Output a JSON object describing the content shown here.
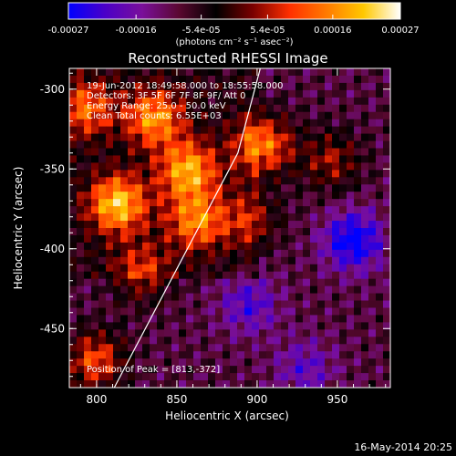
{
  "colorbar": {
    "tick_labels": [
      "-0.00027",
      "-0.00016",
      "-5.4e-05",
      "5.4e-05",
      "0.00016",
      "0.00027"
    ],
    "tick_values": [
      -0.00027,
      -0.00016,
      -5.4e-05,
      5.4e-05,
      0.00016,
      0.00027
    ],
    "range": [
      -0.00027,
      0.00027
    ],
    "units_label": "(photons cm⁻² s⁻¹ asec⁻²)",
    "colors": [
      "#0000ff",
      "#4b00c8",
      "#7a0f9a",
      "#5a0830",
      "#000000",
      "#7a0000",
      "#ff3000",
      "#ff7a00",
      "#ffc800",
      "#ffffff"
    ]
  },
  "chart_data": {
    "type": "heatmap",
    "title": "Reconstructed RHESSI Image",
    "xlabel": "Heliocentric X (arcsec)",
    "ylabel": "Heliocentric Y (arcsec)",
    "xlim": [
      783,
      983
    ],
    "ylim": [
      -487,
      -287
    ],
    "x_ticks": [
      800,
      850,
      900,
      950
    ],
    "y_ticks": [
      -300,
      -350,
      -400,
      -450
    ],
    "x_tick_labels": [
      "800",
      "850",
      "900",
      "950"
    ],
    "y_tick_labels": [
      "-300",
      "-350",
      "-400",
      "-450"
    ],
    "bright_sources": [
      {
        "x": 813,
        "y": -372,
        "value": 0.00027
      },
      {
        "x": 836,
        "y": -318,
        "value": 0.00022
      },
      {
        "x": 857,
        "y": -351,
        "value": 0.00024
      },
      {
        "x": 862,
        "y": -383,
        "value": 0.0002
      },
      {
        "x": 904,
        "y": -335,
        "value": 0.00023
      },
      {
        "x": 793,
        "y": -312,
        "value": 0.00018
      },
      {
        "x": 799,
        "y": -470,
        "value": 0.00019
      },
      {
        "x": 828,
        "y": -415,
        "value": 0.00014
      },
      {
        "x": 946,
        "y": -345,
        "value": 0.00013
      },
      {
        "x": 896,
        "y": -382,
        "value": 0.00012
      }
    ],
    "dark_sources": [
      {
        "x": 960,
        "y": -395,
        "value": -0.0002
      },
      {
        "x": 895,
        "y": -435,
        "value": -0.00012
      },
      {
        "x": 930,
        "y": -475,
        "value": -0.0001
      }
    ],
    "limb_line": [
      [
        811,
        -487
      ],
      [
        888,
        -340
      ],
      [
        902,
        -287
      ]
    ],
    "annotations": [
      "19-Jun-2012 18:49:58.000 to 18:55:58.000",
      "Detectors: 3F 5F 6F 7F 8F 9F/ Att 0",
      "Energy Range: 25.0 - 50.0 keV",
      "Clean      Total counts: 6.55E+03"
    ],
    "peak_label": "Position of Peak = [813,-372]",
    "peak": [
      813,
      -372
    ]
  },
  "footer": {
    "date": "16-May-2014 20:25"
  }
}
